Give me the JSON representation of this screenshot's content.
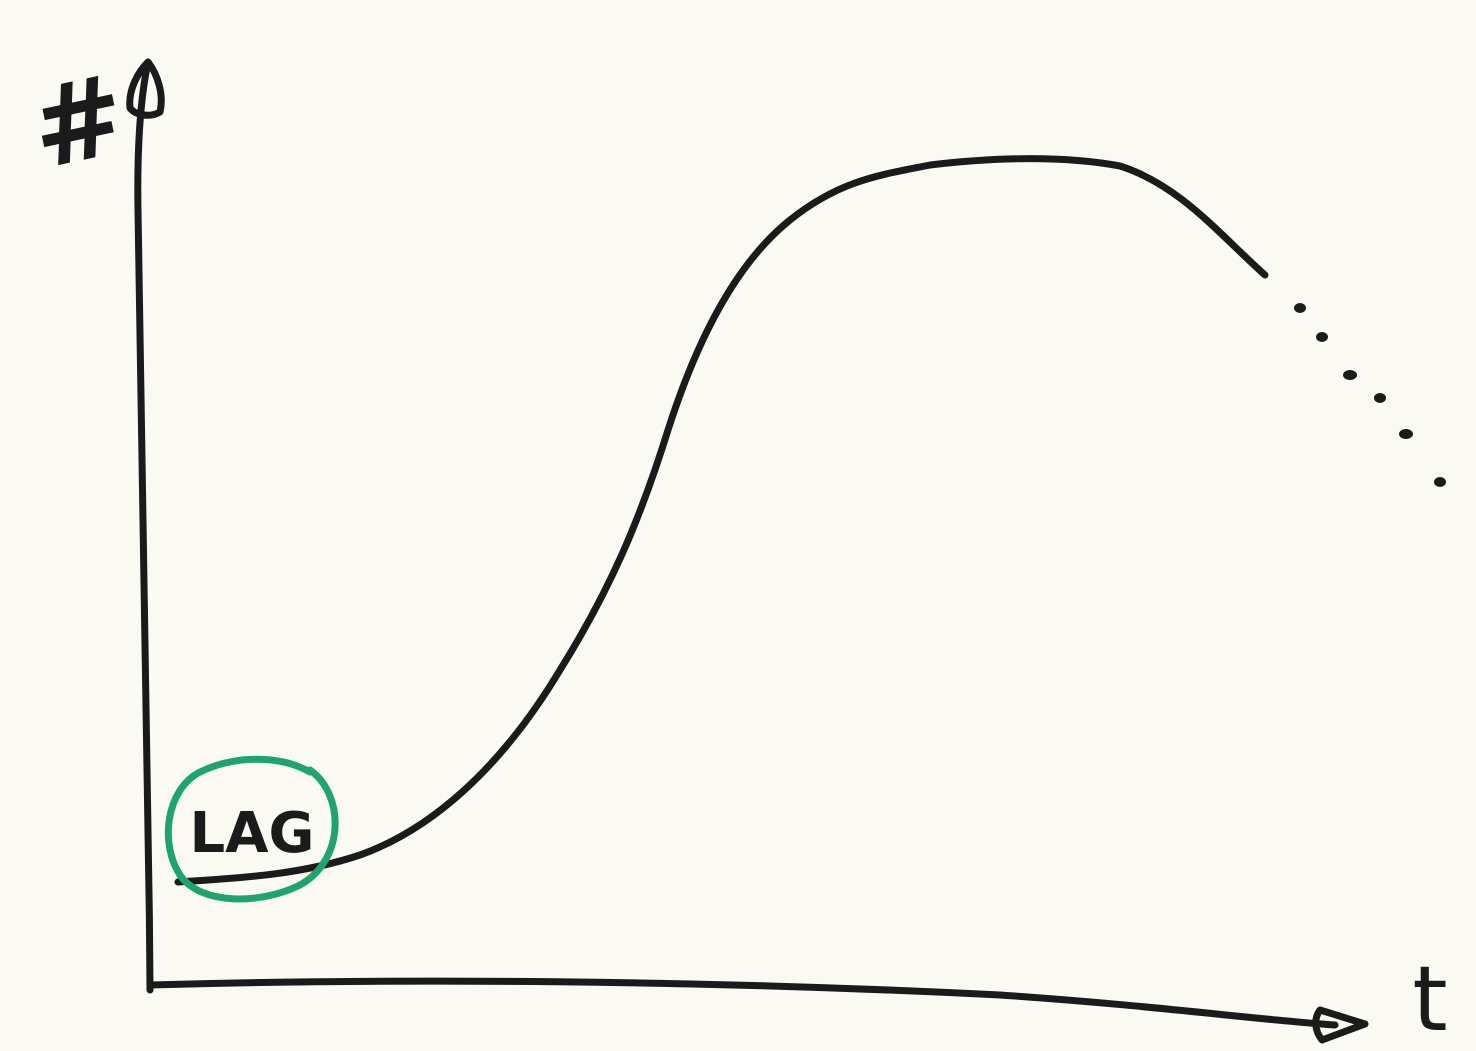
{
  "axes": {
    "y_label": "#",
    "x_label": "t"
  },
  "annotation": {
    "label": "LAG"
  }
}
